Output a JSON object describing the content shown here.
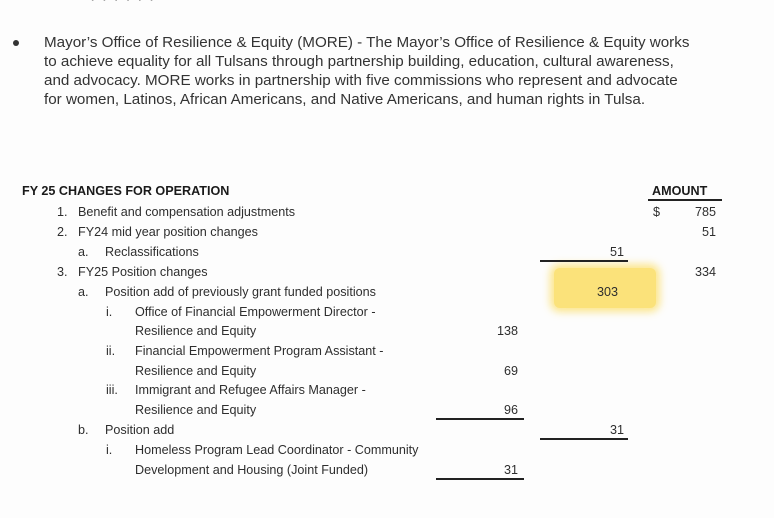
{
  "partial_top_line": "· · · ·   ·   ·",
  "paragraph": {
    "lines": [
      "Mayor’s Office of Resilience & Equity (MORE) - The Mayor’s Office of Resilience & Equity works",
      "to achieve equality for all Tulsans through partnership building, education, cultural awareness,",
      "and advocacy. MORE works in partnership with five commissions who represent and advocate",
      "for women, Latinos, African Americans, and Native Americans, and human rights in Tulsa."
    ]
  },
  "table": {
    "heading": "FY 25 CHANGES FOR OPERATION",
    "amount_header": "AMOUNT",
    "currency": "$",
    "rows": [
      {
        "marker": "1.",
        "text": "Benefit and compensation adjustments",
        "amount": "785"
      },
      {
        "marker": "2.",
        "text": "FY24 mid year position changes",
        "amount": "51"
      },
      {
        "marker": "a.",
        "text": "Reclassifications",
        "subtotal": "51"
      },
      {
        "marker": "3.",
        "text": "FY25 Position changes",
        "amount": "334"
      },
      {
        "marker": "a.",
        "text": "Position add of previously grant funded positions",
        "subtotal": "303"
      },
      {
        "marker": "i.",
        "text": "Office of Financial Empowerment Director -"
      },
      {
        "text": "Resilience and Equity",
        "detail": "138"
      },
      {
        "marker": "ii.",
        "text": "Financial Empowerment Program Assistant -"
      },
      {
        "text": "Resilience and Equity",
        "detail": "69"
      },
      {
        "marker": "iii.",
        "text": "Immigrant and Refugee Affairs Manager -"
      },
      {
        "text": "Resilience and Equity",
        "detail": "96"
      },
      {
        "marker": "b.",
        "text": "Position add",
        "subtotal": "31"
      },
      {
        "marker": "i.",
        "text": "Homeless Program Lead Coordinator - Community"
      },
      {
        "text": "Development and Housing (Joint Funded)",
        "detail": "31"
      }
    ]
  },
  "colors": {
    "highlight": "#fbe27a",
    "text": "#2e2e2e"
  }
}
